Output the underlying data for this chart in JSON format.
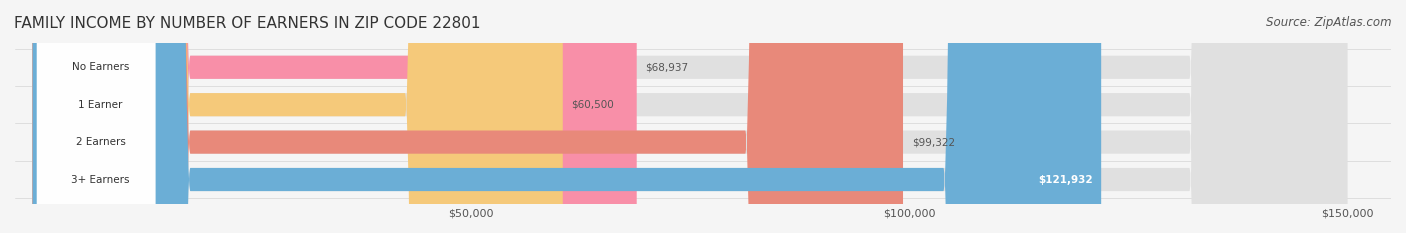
{
  "title": "FAMILY INCOME BY NUMBER OF EARNERS IN ZIP CODE 22801",
  "source": "Source: ZipAtlas.com",
  "categories": [
    "No Earners",
    "1 Earner",
    "2 Earners",
    "3+ Earners"
  ],
  "values": [
    68937,
    60500,
    99322,
    121932
  ],
  "bar_colors": [
    "#f88fa8",
    "#f5c97a",
    "#e8897a",
    "#6baed6"
  ],
  "bar_bg_color": "#e8e8e8",
  "label_colors": [
    "#333333",
    "#333333",
    "#333333",
    "#ffffff"
  ],
  "value_labels": [
    "$68,937",
    "$60,500",
    "$99,322",
    "$121,932"
  ],
  "xlim": [
    0,
    150000
  ],
  "xticks": [
    50000,
    100000,
    150000
  ],
  "xtick_labels": [
    "$50,000",
    "$100,000",
    "$150,000"
  ],
  "fig_bg_color": "#f5f5f5",
  "bar_bg_full_color": "#e0e0e0",
  "title_fontsize": 11,
  "source_fontsize": 8.5
}
